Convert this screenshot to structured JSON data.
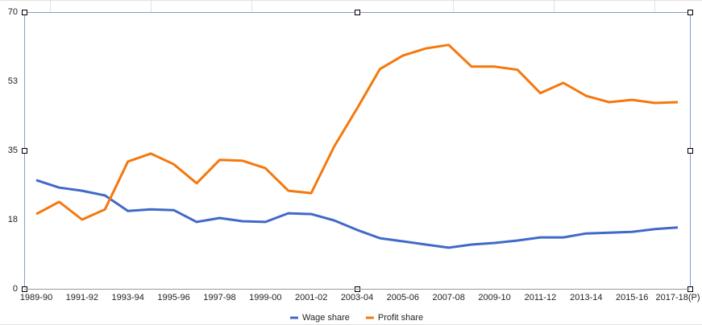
{
  "chart_data": {
    "type": "line",
    "categories": [
      "1989-90",
      null,
      "1991-92",
      null,
      "1993-94",
      null,
      "1995-96",
      null,
      "1997-98",
      null,
      "1999-00",
      null,
      "2001-02",
      null,
      "2003-04",
      null,
      "2005-06",
      null,
      "2007-08",
      null,
      "2009-10",
      null,
      "2011-12",
      null,
      "2013-14",
      null,
      "2015-16",
      null,
      "2017-18(P)"
    ],
    "series": [
      {
        "name": "Wage share",
        "color": "#4169c8",
        "values": [
          27.5,
          25.6,
          24.8,
          23.6,
          19.7,
          20.1,
          19.9,
          16.9,
          17.9,
          17.1,
          16.9,
          19.1,
          18.9,
          17.3,
          14.9,
          12.8,
          12.0,
          11.2,
          10.4,
          11.2,
          11.6,
          12.2,
          13.0,
          13.0,
          14.0,
          14.2,
          14.4,
          15.1,
          15.5
        ]
      },
      {
        "name": "Profit share",
        "color": "#f4780e",
        "values": [
          18.9,
          22.0,
          17.5,
          20.1,
          32.2,
          34.2,
          31.5,
          26.7,
          32.6,
          32.4,
          30.5,
          24.8,
          24.2,
          36.0,
          45.6,
          55.6,
          59.0,
          60.8,
          61.7,
          56.2,
          56.2,
          55.4,
          49.5,
          52.1,
          48.8,
          47.2,
          47.8,
          47.0,
          47.2
        ]
      }
    ],
    "ylim": [
      0,
      70
    ],
    "yticks": [
      0,
      {
        "value": 17.5,
        "label": "18"
      },
      35,
      {
        "value": 52.5,
        "label": "53"
      },
      70
    ],
    "legend": "bottom"
  }
}
